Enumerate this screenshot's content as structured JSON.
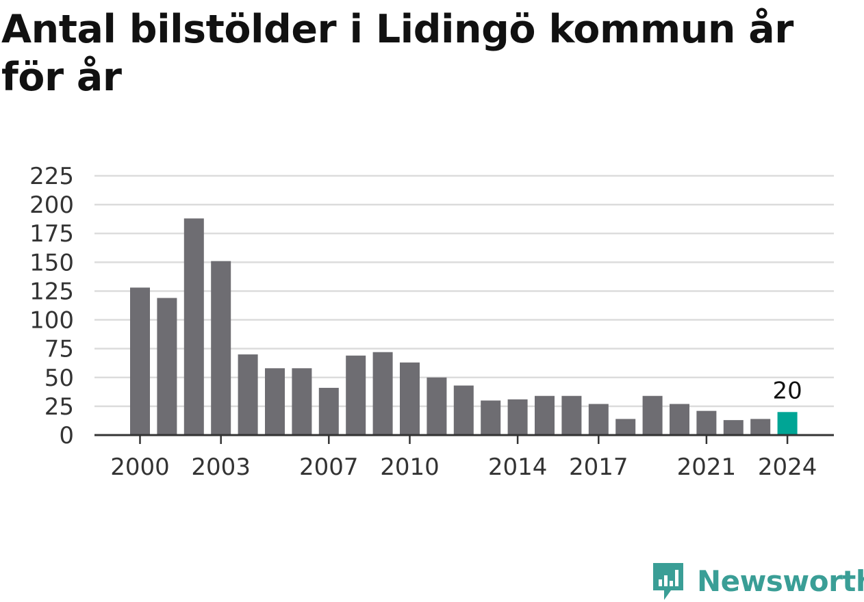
{
  "title": "Antal bilstölder i Lidingö kommun år för år",
  "brand": {
    "name": "Newsworthy",
    "icon": "newsworthy-logo-icon",
    "color": "#3a9e96"
  },
  "chart_data": {
    "type": "bar",
    "title": "Antal bilstölder i Lidingö kommun år för år",
    "xlabel": "",
    "ylabel": "",
    "categories": [
      "2000",
      "2001",
      "2002",
      "2003",
      "2004",
      "2005",
      "2006",
      "2007",
      "2008",
      "2009",
      "2010",
      "2011",
      "2012",
      "2013",
      "2014",
      "2015",
      "2016",
      "2017",
      "2018",
      "2019",
      "2020",
      "2021",
      "2022",
      "2023",
      "2024"
    ],
    "x_tick_labels": [
      "2000",
      "2003",
      "2007",
      "2010",
      "2014",
      "2017",
      "2021",
      "2024"
    ],
    "values": [
      128,
      119,
      188,
      151,
      70,
      58,
      58,
      41,
      69,
      72,
      63,
      50,
      43,
      30,
      31,
      34,
      34,
      27,
      14,
      34,
      27,
      21,
      13,
      14,
      20
    ],
    "ylim": [
      0,
      225
    ],
    "yticks": [
      0,
      25,
      50,
      75,
      100,
      125,
      150,
      175,
      200,
      225
    ],
    "grid": true,
    "bar_color": "#6e6d72",
    "highlight_color": "#00a595",
    "highlight_category": "2024",
    "highlight_label": "20"
  }
}
